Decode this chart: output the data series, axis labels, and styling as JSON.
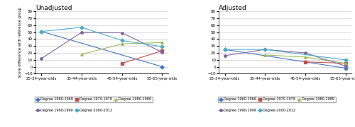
{
  "x_labels": [
    "25-34-year-olds",
    "35-44-year-olds",
    "45-54-year-olds",
    "55-65-year-olds"
  ],
  "unadjusted": {
    "Degree 1960-1969": [
      51,
      null,
      null,
      0
    ],
    "Degree 1970-1979": [
      null,
      null,
      5,
      23
    ],
    "Degree 1980-1989": [
      null,
      18,
      33,
      35
    ],
    "Degree 1990-1999": [
      12,
      50,
      49,
      21
    ],
    "Degree 2000-2012": [
      51,
      57,
      38,
      29
    ]
  },
  "adjusted": {
    "Degree 1960-1969": [
      25,
      null,
      null,
      -2
    ],
    "Degree 1970-1979": [
      null,
      null,
      7,
      5
    ],
    "Degree 1980-1989": [
      null,
      17,
      14,
      5
    ],
    "Degree 1990-1999": [
      16,
      25,
      20,
      1
    ],
    "Degree 2000-2012": [
      25,
      25,
      null,
      10
    ]
  },
  "colors": {
    "Degree 1960-1969": "#4472C4",
    "Degree 1970-1979": "#C0504D",
    "Degree 1980-1989": "#9BBB59",
    "Degree 1990-1999": "#8064A2",
    "Degree 2000-2012": "#4BACC6"
  },
  "markers": {
    "Degree 1960-1969": "D",
    "Degree 1970-1979": "s",
    "Degree 1980-1989": "^",
    "Degree 1990-1999": "o",
    "Degree 2000-2012": "D"
  },
  "ylim": [
    -10,
    80
  ],
  "yticks": [
    -10,
    0,
    10,
    20,
    30,
    40,
    50,
    60,
    70,
    80
  ],
  "title_unadj": "Unadjusted",
  "title_adj": "Adjusted",
  "ylabel": "Score difference with reference group",
  "legend_row1": [
    "Degree 1960-1969",
    "Degree 1970-1979",
    "Degree 1980-1989"
  ],
  "legend_row2": [
    "Degree 1990-1999",
    "Degree 2000-2012"
  ]
}
